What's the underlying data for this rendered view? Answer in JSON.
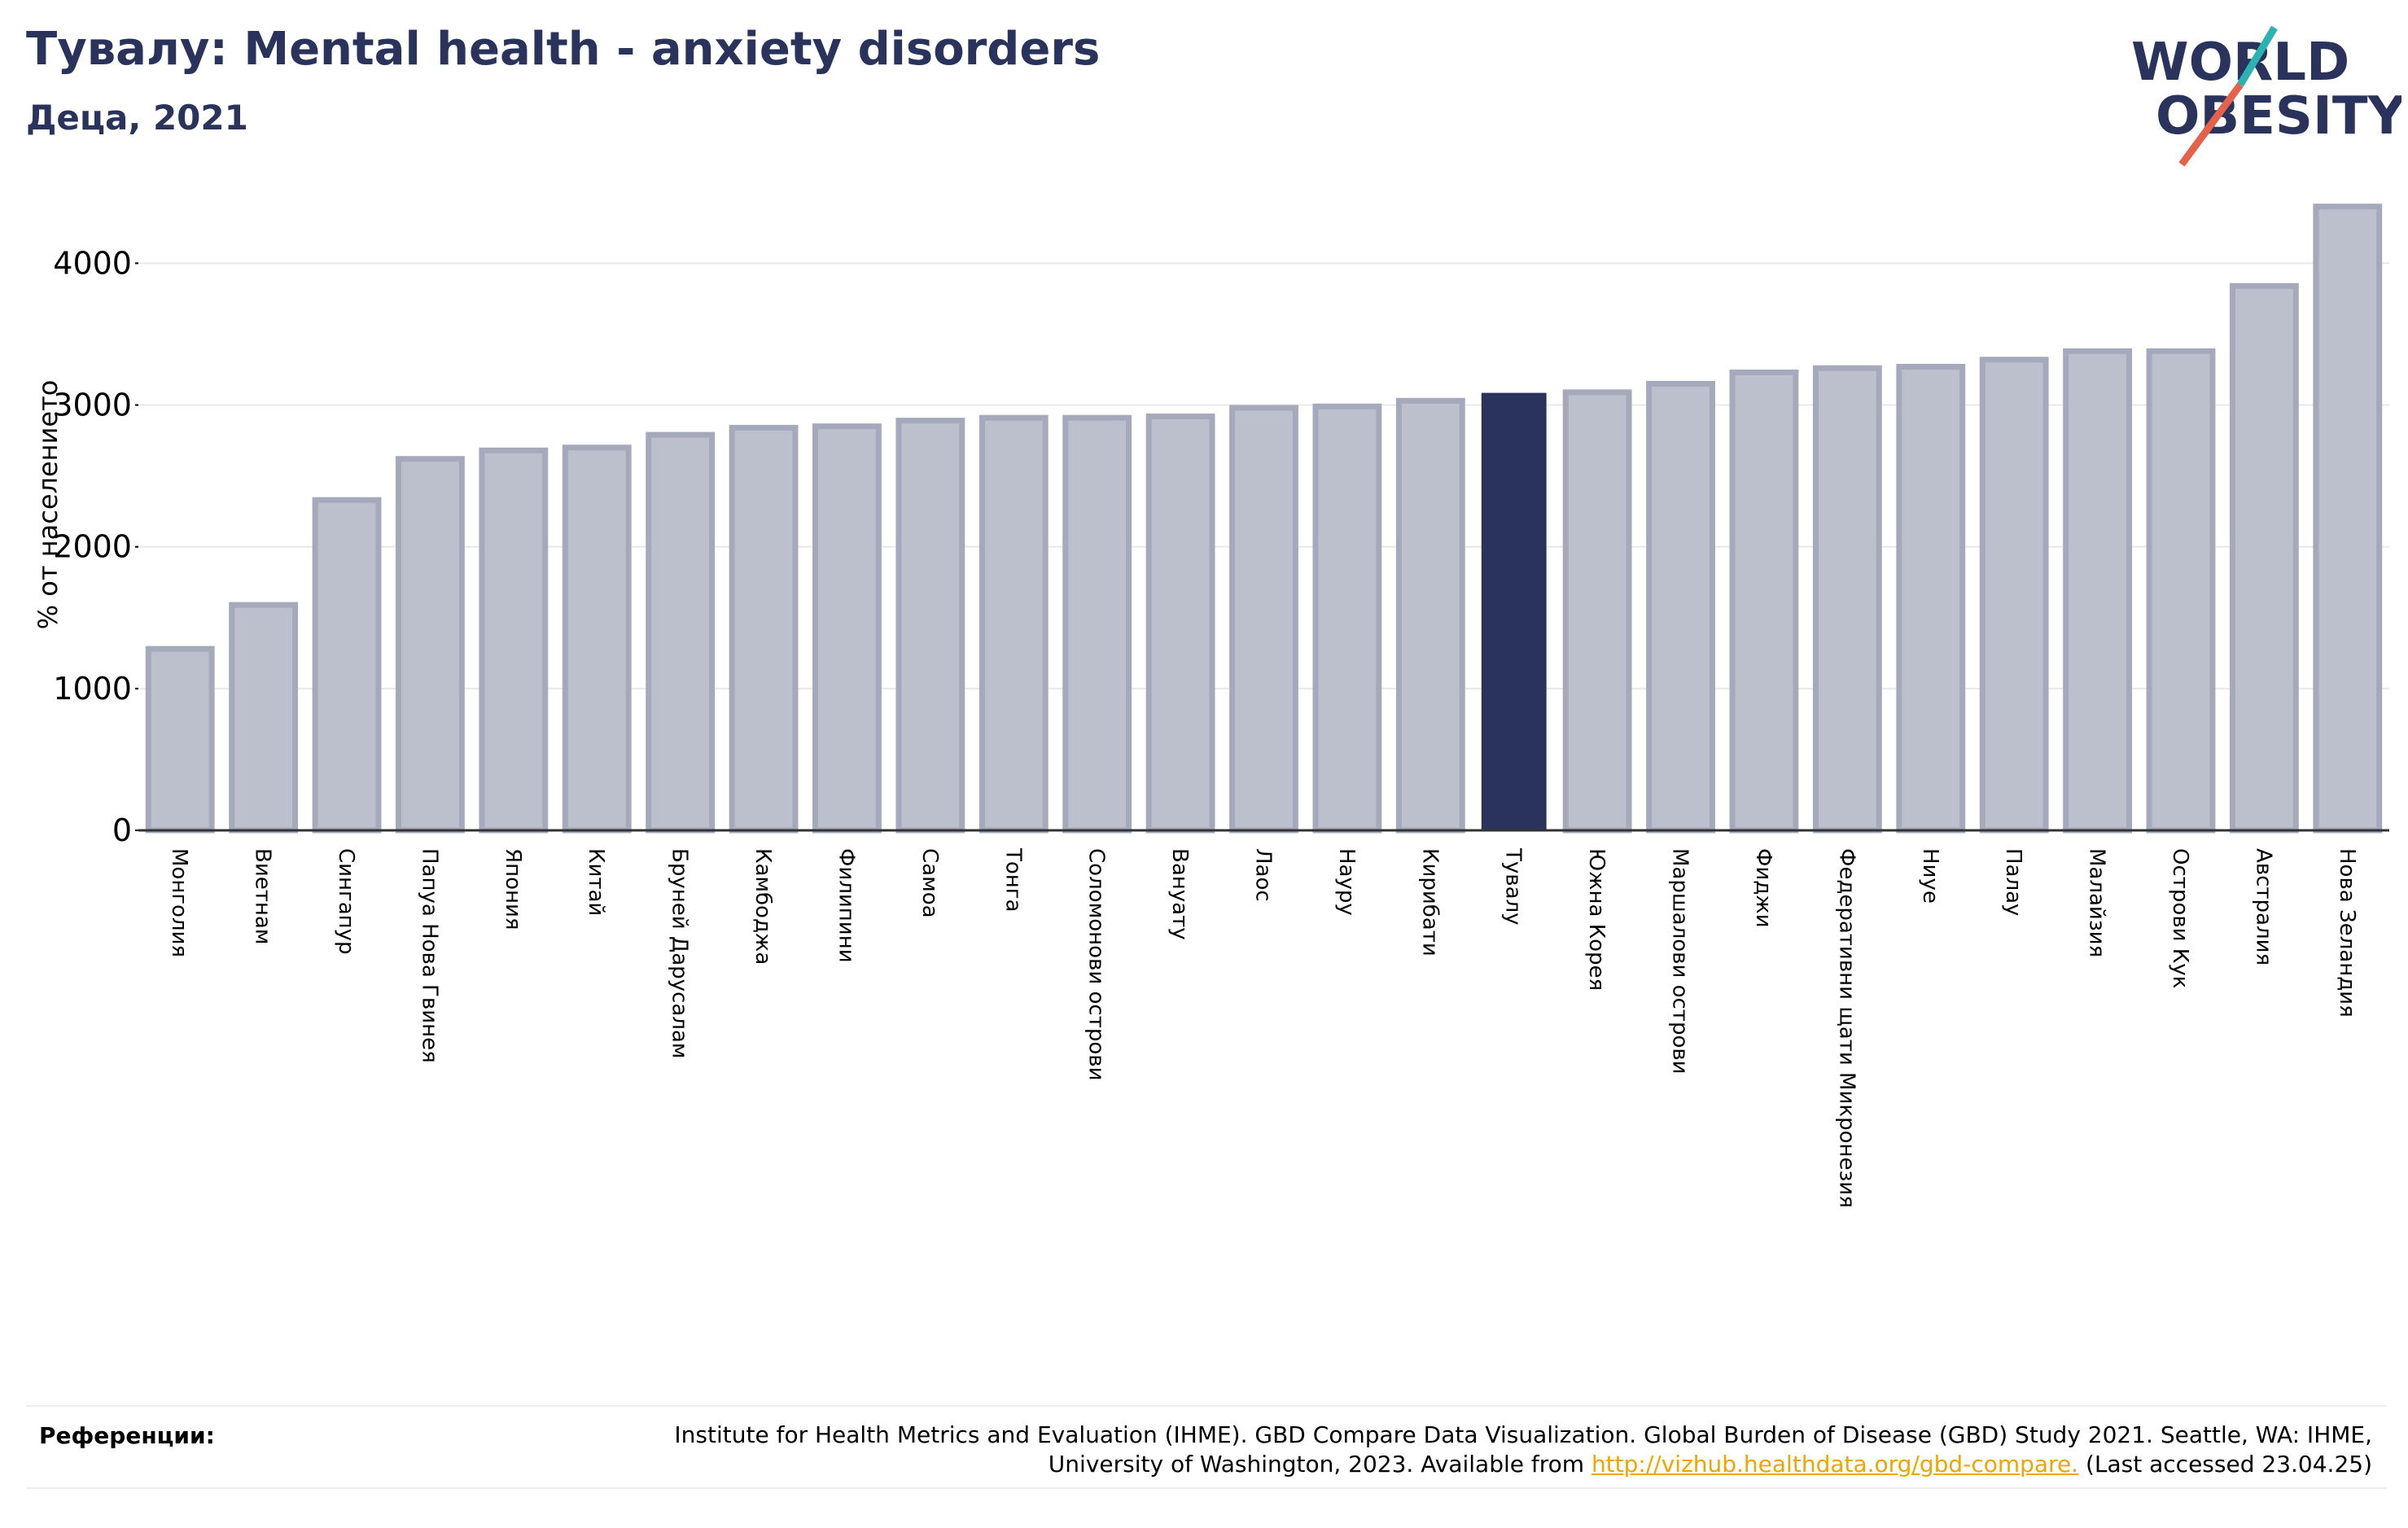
{
  "header": {
    "title": "Тувалу: Mental health - anxiety disorders",
    "subtitle": "Деца, 2021"
  },
  "logo": {
    "line1": "WORLD",
    "line2": "OBESITY",
    "colors": {
      "text": "#29335c",
      "slash_teal": "#2ab3b1",
      "slash_red": "#e4614a"
    }
  },
  "colors": {
    "highlight": "#29335c",
    "bar_fill": "#bcc0cd",
    "bar_stroke": "#a4a9bc",
    "grid": "#e8e8e8"
  },
  "chart_data": {
    "type": "bar",
    "title": "Тувалу: Mental health - anxiety disorders",
    "subtitle": "Деца, 2021",
    "ylabel": "% от населението",
    "xlabel": "",
    "ylim": [
      0,
      4450
    ],
    "yticks": [
      0,
      1000,
      2000,
      3000,
      4000
    ],
    "grid": true,
    "highlight": "Тувалу",
    "categories": [
      "Монголия",
      "Виетнам",
      "Сингапур",
      "Папуа Нова Гвинея",
      "Япония",
      "Китай",
      "Бруней Дарусалам",
      "Камбоджа",
      "Филипини",
      "Самоа",
      "Тонга",
      "Соломонови острови",
      "Вануату",
      "Лаос",
      "Науру",
      "Кирибати",
      "Тувалу",
      "Южна Корея",
      "Маршалови острови",
      "Фиджи",
      "Федеративни щати Микронезия",
      "Ниуе",
      "Палау",
      "Малайзия",
      "Острови Кук",
      "Австралия",
      "Нова Зеландия"
    ],
    "values": [
      1280,
      1590,
      2330,
      2620,
      2680,
      2700,
      2790,
      2840,
      2850,
      2890,
      2910,
      2910,
      2920,
      2980,
      2990,
      3030,
      3080,
      3090,
      3150,
      3230,
      3260,
      3270,
      3320,
      3380,
      3380,
      3840,
      4400
    ]
  },
  "references": {
    "label": "Референции:",
    "text": "Institute for Health Metrics and Evaluation (IHME). GBD Compare Data Visualization. Global Burden of Disease (GBD) Study 2021. Seattle, WA: IHME, University of Washington, 2023. Available from",
    "link_text": "http://vizhub.healthdata.org/gbd-compare.",
    "suffix": "(Last accessed 23.04.25)"
  }
}
